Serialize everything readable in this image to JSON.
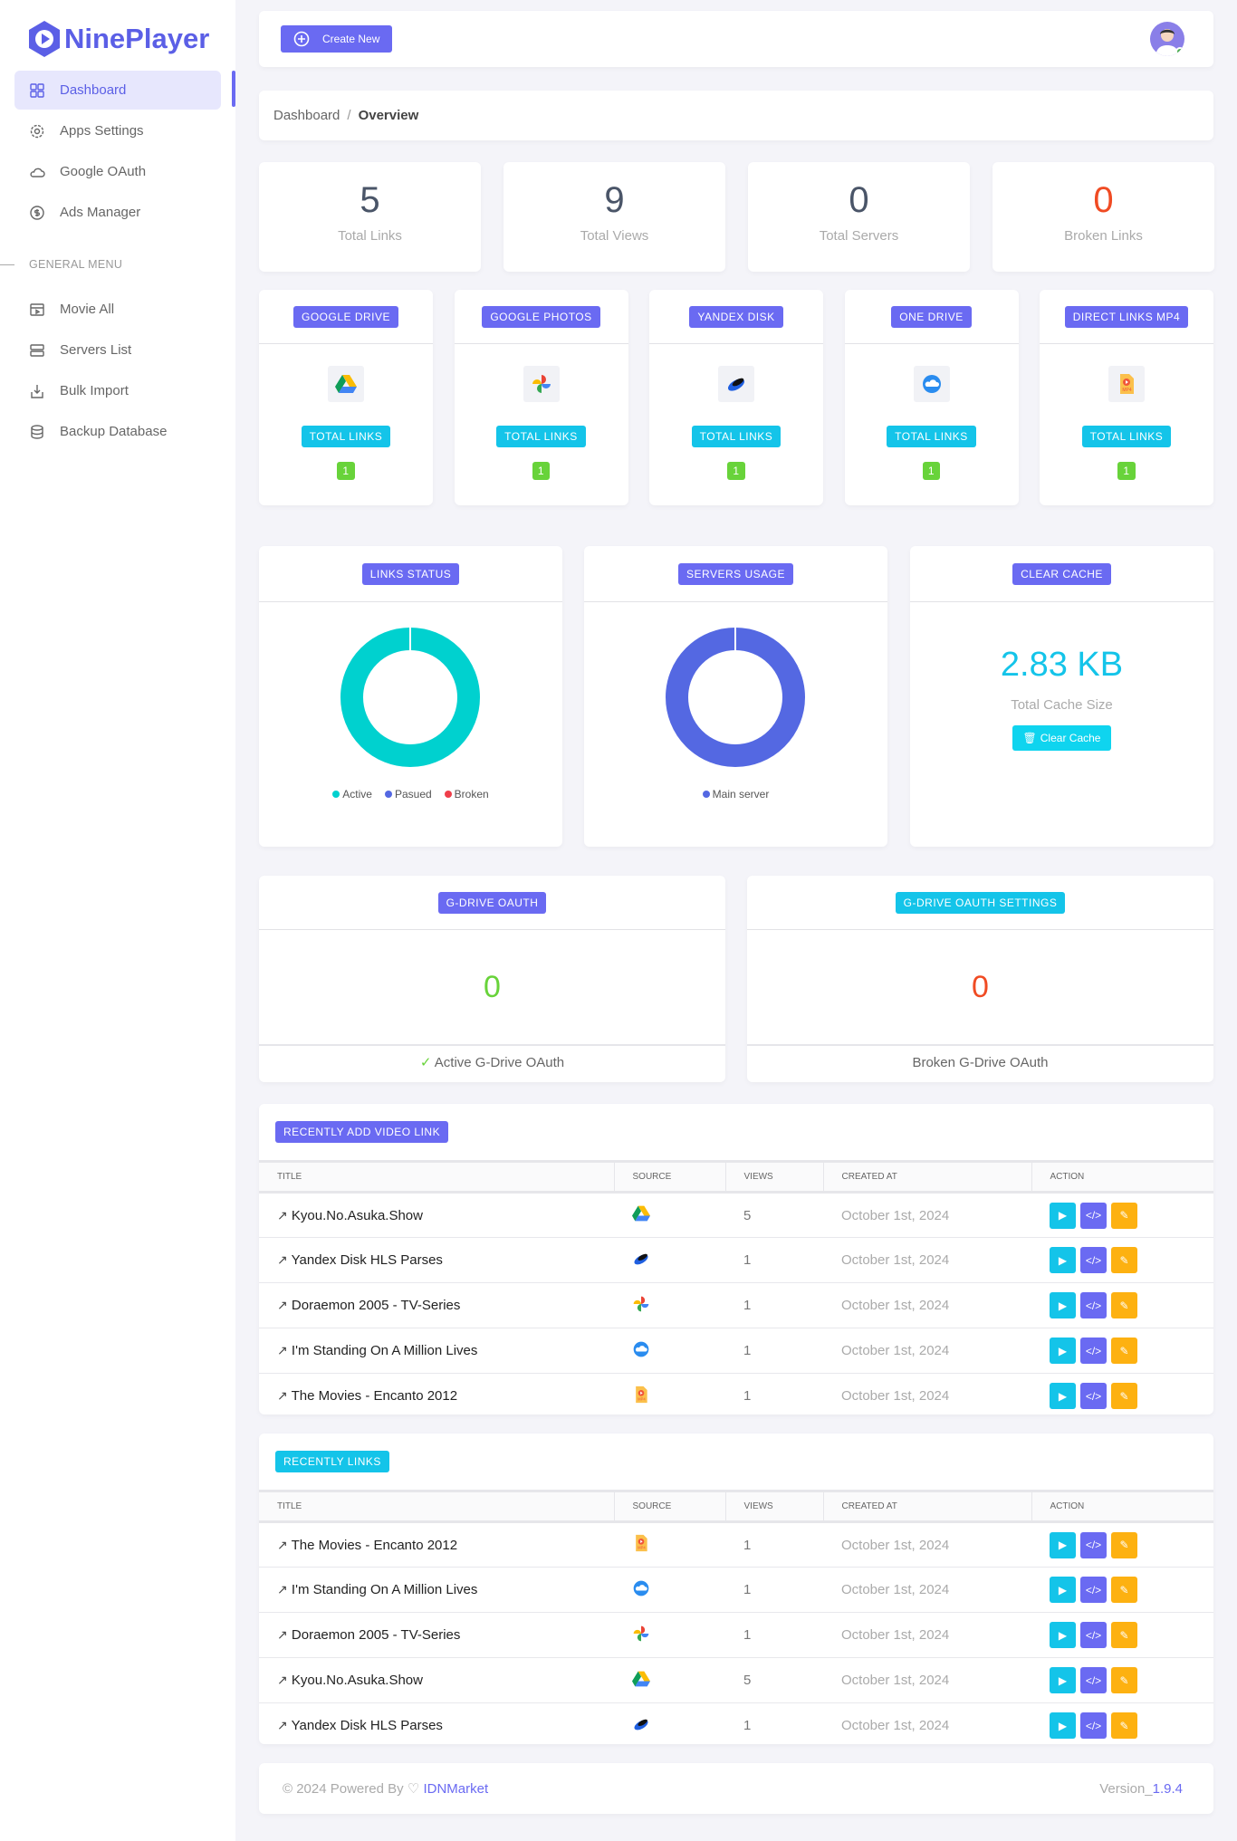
{
  "brand": {
    "name": "NinePlayer"
  },
  "sidebar": {
    "items": [
      {
        "label": "Dashboard",
        "icon": "grid-icon"
      },
      {
        "label": "Apps Settings",
        "icon": "gear-icon"
      },
      {
        "label": "Google OAuth",
        "icon": "cloud-icon"
      },
      {
        "label": "Ads Manager",
        "icon": "dollar-icon"
      }
    ],
    "section": "GENERAL MENU",
    "general": [
      {
        "label": "Movie All",
        "icon": "film-icon"
      },
      {
        "label": "Servers List",
        "icon": "server-icon"
      },
      {
        "label": "Bulk Import",
        "icon": "import-icon"
      },
      {
        "label": "Backup Database",
        "icon": "database-icon"
      }
    ]
  },
  "topbar": {
    "create_label": "Create New"
  },
  "breadcrumb": {
    "root": "Dashboard",
    "sep": "/",
    "current": "Overview"
  },
  "stats": [
    {
      "value": "5",
      "label": "Total Links"
    },
    {
      "value": "9",
      "label": "Total Views"
    },
    {
      "value": "0",
      "label": "Total Servers"
    },
    {
      "value": "0",
      "label": "Broken Links"
    }
  ],
  "sources": [
    {
      "name": "GOOGLE DRIVE",
      "label": "TOTAL LINKS",
      "count": "1"
    },
    {
      "name": "GOOGLE PHOTOS",
      "label": "TOTAL LINKS",
      "count": "1"
    },
    {
      "name": "YANDEX DISK",
      "label": "TOTAL LINKS",
      "count": "1"
    },
    {
      "name": "ONE DRIVE",
      "label": "TOTAL LINKS",
      "count": "1"
    },
    {
      "name": "DIRECT LINKS MP4",
      "label": "TOTAL LINKS",
      "count": "1"
    }
  ],
  "chart_data": [
    {
      "type": "pie",
      "title": "LINKS STATUS",
      "categories": [
        "Active",
        "Pasued",
        "Broken"
      ],
      "values": [
        5,
        0,
        0
      ],
      "colors": [
        "#00d1cf",
        "#5468e2",
        "#ef3e4a"
      ]
    },
    {
      "type": "pie",
      "title": "SERVERS USAGE",
      "categories": [
        "Main server"
      ],
      "values": [
        1
      ],
      "colors": [
        "#5468e2"
      ]
    }
  ],
  "cache": {
    "title": "CLEAR CACHE",
    "size": "2.83 KB",
    "label": "Total Cache Size",
    "button": "Clear Cache"
  },
  "oauth": {
    "active": {
      "title": "G-DRIVE OAUTH",
      "value": "0",
      "footer": "Active G-Drive OAuth"
    },
    "broken": {
      "title": "G-DRIVE OAUTH SETTINGS",
      "value": "0",
      "footer": "Broken G-Drive OAuth"
    }
  },
  "columns": [
    "TITLE",
    "SOURCE",
    "VIEWS",
    "CREATED AT",
    "ACTION"
  ],
  "recent_video": {
    "title": "RECENTLY ADD VIDEO LINK",
    "rows": [
      {
        "title": "Kyou.No.Asuka.Show",
        "source": "gdrive",
        "views": "5",
        "created": "October 1st, 2024"
      },
      {
        "title": "Yandex Disk HLS Parses",
        "source": "yandex",
        "views": "1",
        "created": "October 1st, 2024"
      },
      {
        "title": "Doraemon 2005 - TV-Series",
        "source": "gphotos",
        "views": "1",
        "created": "October 1st, 2024"
      },
      {
        "title": "I'm Standing On A Million Lives",
        "source": "onedrive",
        "views": "1",
        "created": "October 1st, 2024"
      },
      {
        "title": "The Movies - Encanto 2012",
        "source": "mp4",
        "views": "1",
        "created": "October 1st, 2024"
      }
    ]
  },
  "recent_links": {
    "title": "RECENTLY LINKS",
    "rows": [
      {
        "title": "The Movies - Encanto 2012",
        "source": "mp4",
        "views": "1",
        "created": "October 1st, 2024"
      },
      {
        "title": "I'm Standing On A Million Lives",
        "source": "onedrive",
        "views": "1",
        "created": "October 1st, 2024"
      },
      {
        "title": "Doraemon 2005 - TV-Series",
        "source": "gphotos",
        "views": "1",
        "created": "October 1st, 2024"
      },
      {
        "title": "Kyou.No.Asuka.Show",
        "source": "gdrive",
        "views": "5",
        "created": "October 1st, 2024"
      },
      {
        "title": "Yandex Disk HLS Parses",
        "source": "yandex",
        "views": "1",
        "created": "October 1st, 2024"
      }
    ]
  },
  "footer": {
    "copyright": "© 2024 Powered By",
    "brand": "IDNMarket",
    "version_label": "Version_",
    "version": "1.9.4"
  }
}
